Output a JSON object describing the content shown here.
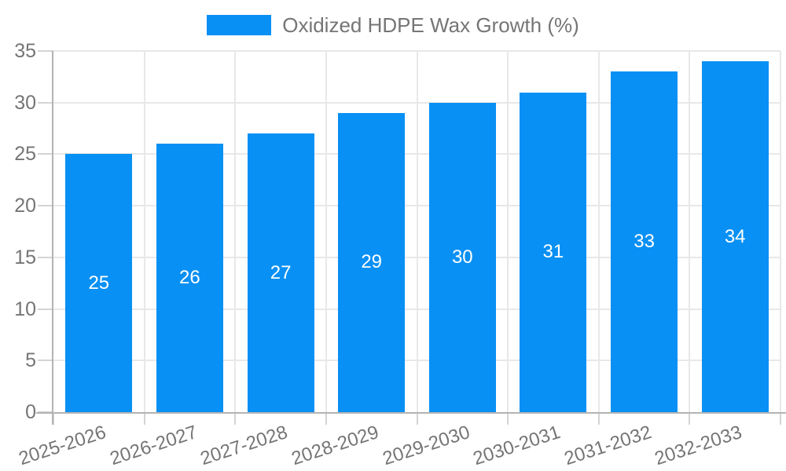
{
  "legend": {
    "label": "Oxidized HDPE Wax Growth (%)",
    "swatch_color": "#0890f4"
  },
  "chart_data": {
    "type": "bar",
    "title": "Oxidized HDPE Wax Growth (%)",
    "categories": [
      "2025-2026",
      "2026-2027",
      "2027-2028",
      "2028-2029",
      "2029-2030",
      "2030-2031",
      "2031-2032",
      "2032-2033"
    ],
    "series": [
      {
        "name": "Oxidized HDPE Wax Growth (%)",
        "values": [
          25,
          26,
          27,
          29,
          30,
          31,
          33,
          34
        ],
        "color": "#0890f4"
      }
    ],
    "value_labels": [
      25,
      26,
      27,
      29,
      30,
      31,
      33,
      34
    ],
    "value_label_position": "inside-center",
    "value_label_color": "#ffffff",
    "xlabel": "",
    "ylabel": "",
    "ylim": [
      0,
      35
    ],
    "yticks": [
      0,
      5,
      10,
      15,
      20,
      25,
      30,
      35
    ],
    "grid": "horizontal-and-vertical",
    "legend_position": "top-center",
    "x_tick_rotation_deg": -18
  },
  "colors": {
    "bar": "#0890f4",
    "text": "#757575",
    "grid": "#e8e8e8",
    "axis": "#b3b3b3",
    "tick": "#d4d4d4",
    "value_label": "#ffffff",
    "background": "#ffffff"
  }
}
